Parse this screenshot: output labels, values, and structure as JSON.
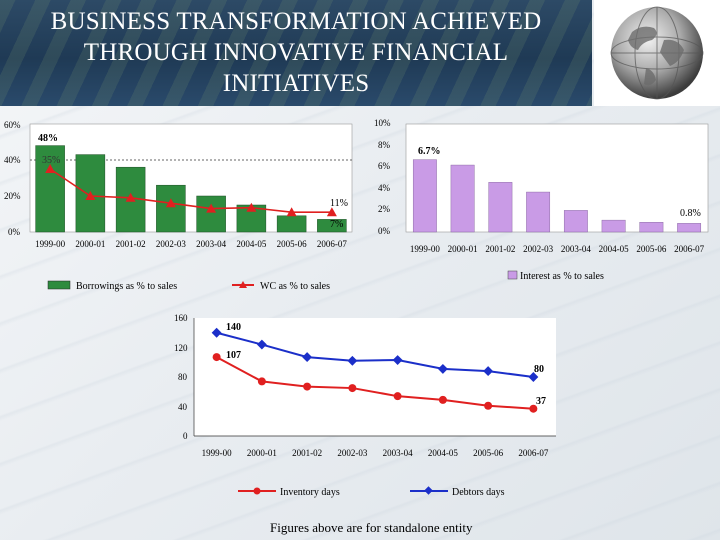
{
  "title_lines": [
    "BUSINESS TRANSFORMATION ACHIEVED",
    "THROUGH INNOVATIVE FINANCIAL",
    "INITIATIVES"
  ],
  "footnote": "Figures above are for standalone entity",
  "colors": {
    "borrowings": "#2e8b3e",
    "wc": "#e02020",
    "interest": "#c99be6",
    "inventory": "#e02020",
    "debtors": "#1b2fc9"
  },
  "chart_data": [
    {
      "type": "bar",
      "categories": [
        "1999-00",
        "2000-01",
        "2001-02",
        "2002-03",
        "2003-04",
        "2004-05",
        "2005-06",
        "2006-07"
      ],
      "series": [
        {
          "name": "Borrowings as % to sales",
          "type": "bar",
          "values": [
            48,
            43,
            36,
            26,
            20,
            15,
            9,
            7
          ]
        },
        {
          "name": "WC as % to sales",
          "type": "line",
          "values": [
            35,
            20,
            19,
            16,
            13,
            13.5,
            11,
            11
          ]
        }
      ],
      "data_labels": [
        {
          "text": "48%"
        },
        {
          "text": "35%"
        },
        {
          "text": "11%"
        },
        {
          "text": "7%"
        }
      ],
      "yticks": [
        "60%",
        "40%",
        "20%",
        "0%"
      ],
      "ylim": [
        0,
        60
      ],
      "legend_position": "bottom"
    },
    {
      "type": "bar",
      "categories": [
        "1999-00",
        "2000-01",
        "2001-02",
        "2002-03",
        "2003-04",
        "2004-05",
        "2005-06",
        "2006-07"
      ],
      "series": [
        {
          "name": "Interest as % to sales",
          "values": [
            6.7,
            6.2,
            4.6,
            3.7,
            2.0,
            1.1,
            0.9,
            0.8
          ]
        }
      ],
      "data_labels": [
        {
          "text": "6.7%"
        },
        {
          "text": "0.8%"
        }
      ],
      "yticks": [
        "10%",
        "8%",
        "6%",
        "4%",
        "2%",
        "0%"
      ],
      "ylim": [
        0,
        10
      ],
      "legend_position": "bottom"
    },
    {
      "type": "line",
      "categories": [
        "1999-00",
        "2000-01",
        "2001-02",
        "2002-03",
        "2003-04",
        "2004-05",
        "2005-06",
        "2006-07"
      ],
      "series": [
        {
          "name": "Inventory days",
          "values": [
            107,
            74,
            67,
            65,
            54,
            49,
            41,
            37
          ]
        },
        {
          "name": "Debtors days",
          "values": [
            140,
            124,
            107,
            102,
            103,
            91,
            88,
            80
          ]
        }
      ],
      "data_labels": [
        {
          "text": "140"
        },
        {
          "text": "107"
        },
        {
          "text": "80"
        },
        {
          "text": "37"
        }
      ],
      "yticks": [
        "160",
        "120",
        "80",
        "40",
        "0"
      ],
      "ylim": [
        0,
        160
      ],
      "legend_position": "bottom"
    }
  ]
}
